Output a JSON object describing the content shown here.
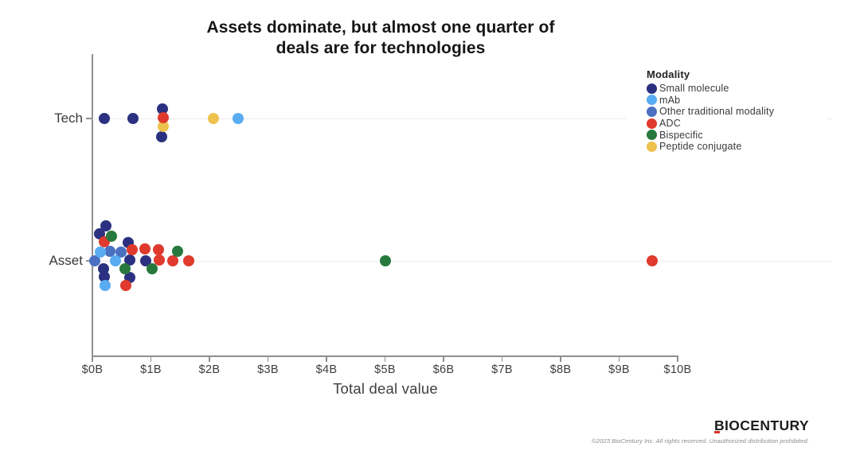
{
  "title": {
    "lines": [
      "Assets dominate, but almost one quarter of",
      "deals are for technologies"
    ]
  },
  "legend": {
    "title": "Modality",
    "items": [
      "Small molecule",
      "mAb",
      "Other traditional modality",
      "ADC",
      "Bispecific",
      "Peptide conjugate"
    ]
  },
  "footer": {
    "logo_text": "BIOCENTURY",
    "copyright": "©2023 BioCentury Inc. All rights reserved.  Unauthorized distribution prohibited."
  },
  "chart_data": {
    "type": "scatter",
    "title": "Assets dominate, but almost one quarter of deals are for technologies",
    "xlabel": "Total deal value",
    "x_unit": "billions USD",
    "xlim": [
      0,
      10
    ],
    "x_ticks": [
      "$0B",
      "$1B",
      "$2B",
      "$3B",
      "$4B",
      "$5B",
      "$6B",
      "$7B",
      "$8B",
      "$9B",
      "$10B"
    ],
    "categories": [
      "Tech",
      "Asset"
    ],
    "legend_title": "Modality",
    "legend_position": "top-right",
    "grid": "row-lines-only",
    "series": [
      {
        "name": "Small molecule",
        "color": "#2b3180",
        "z": 1,
        "points": [
          {
            "row": "Tech",
            "value_b": 0.2,
            "dy": 0
          },
          {
            "row": "Tech",
            "value_b": 0.69,
            "dy": 0
          },
          {
            "row": "Tech",
            "value_b": 1.2,
            "dy": -12
          },
          {
            "row": "Tech",
            "value_b": 1.18,
            "dy": 23
          },
          {
            "row": "Asset",
            "value_b": 0.23,
            "dy": -44
          },
          {
            "row": "Asset",
            "value_b": 0.12,
            "dy": -34
          },
          {
            "row": "Asset",
            "value_b": 0.61,
            "dy": -23
          },
          {
            "row": "Asset",
            "value_b": 0.64,
            "dy": -1
          },
          {
            "row": "Asset",
            "value_b": 0.91,
            "dy": 0
          },
          {
            "row": "Asset",
            "value_b": 0.19,
            "dy": 10
          },
          {
            "row": "Asset",
            "value_b": 0.2,
            "dy": 20
          },
          {
            "row": "Asset",
            "value_b": 0.64,
            "dy": 21
          }
        ]
      },
      {
        "name": "mAb",
        "color": "#59acf1",
        "z": 3,
        "points": [
          {
            "row": "Tech",
            "value_b": 2.49,
            "dy": 0
          },
          {
            "row": "Asset",
            "value_b": 0.14,
            "dy": -11
          },
          {
            "row": "Asset",
            "value_b": 0.39,
            "dy": 0
          },
          {
            "row": "Asset",
            "value_b": 0.22,
            "dy": 31
          }
        ]
      },
      {
        "name": "Other traditional modality",
        "color": "#4a70c2",
        "z": 2,
        "points": [
          {
            "row": "Asset",
            "value_b": 0.3,
            "dy": -12
          },
          {
            "row": "Asset",
            "value_b": 0.49,
            "dy": -11
          },
          {
            "row": "Asset",
            "value_b": 0.04,
            "dy": 0
          }
        ]
      },
      {
        "name": "ADC",
        "color": "#df3a2d",
        "z": 5,
        "points": [
          {
            "row": "Tech",
            "value_b": 1.21,
            "dy": -1
          },
          {
            "row": "Asset",
            "value_b": 0.2,
            "dy": -24
          },
          {
            "row": "Asset",
            "value_b": 0.68,
            "dy": -14
          },
          {
            "row": "Asset",
            "value_b": 0.9,
            "dy": -15
          },
          {
            "row": "Asset",
            "value_b": 1.13,
            "dy": -14
          },
          {
            "row": "Asset",
            "value_b": 1.14,
            "dy": -1
          },
          {
            "row": "Asset",
            "value_b": 1.37,
            "dy": 0
          },
          {
            "row": "Asset",
            "value_b": 1.65,
            "dy": 0
          },
          {
            "row": "Asset",
            "value_b": 0.57,
            "dy": 31
          },
          {
            "row": "Asset",
            "value_b": 9.57,
            "dy": 0
          }
        ]
      },
      {
        "name": "Bispecific",
        "color": "#27783c",
        "z": 6,
        "points": [
          {
            "row": "Asset",
            "value_b": 0.33,
            "dy": -31
          },
          {
            "row": "Asset",
            "value_b": 1.46,
            "dy": -12
          },
          {
            "row": "Asset",
            "value_b": 0.56,
            "dy": 10
          },
          {
            "row": "Asset",
            "value_b": 1.02,
            "dy": 10
          },
          {
            "row": "Asset",
            "value_b": 5.0,
            "dy": 0
          }
        ]
      },
      {
        "name": "Peptide conjugate",
        "color": "#edc24d",
        "z": 4,
        "points": [
          {
            "row": "Tech",
            "value_b": 1.21,
            "dy": 10
          },
          {
            "row": "Tech",
            "value_b": 2.07,
            "dy": 0
          }
        ]
      }
    ]
  }
}
